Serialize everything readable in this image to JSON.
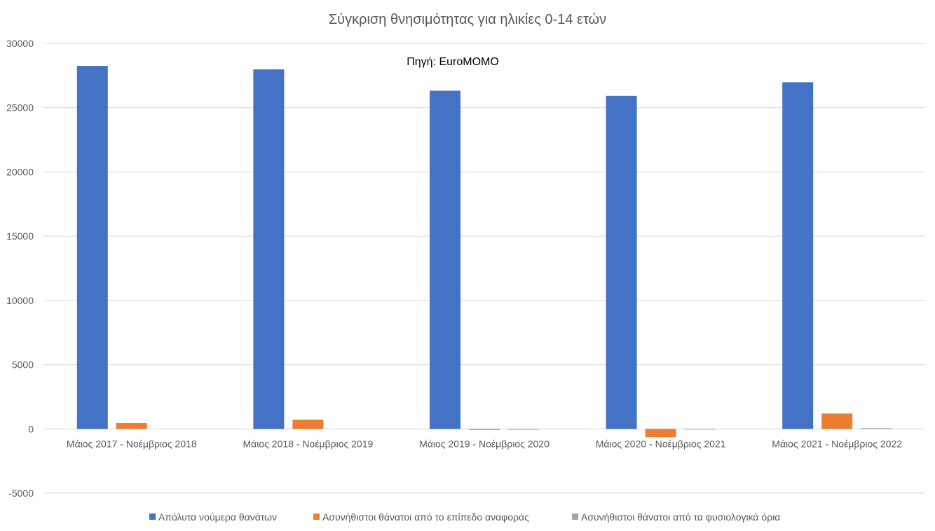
{
  "chart_data": {
    "type": "bar",
    "title": "Σύγκριση θνησιμότητας για ηλικίες 0-14 ετών",
    "annotation": "Πηγή: EuroMOMO",
    "categories": [
      "Μάιος 2017 - Νοέμβριος 2018",
      "Μάιος 2018 - Νοέμβριος 2019",
      "Μάιος 2019 - Νοέμβριος 2020",
      "Μάιος 2020 - Νοέμβριος 2021",
      "Μάιος 2021 - Νοέμβριος 2022"
    ],
    "series": [
      {
        "name": "Απόλυτα νούμερα θανάτων",
        "color": "#4472c4",
        "values": [
          28250,
          27980,
          26320,
          25920,
          26980
        ]
      },
      {
        "name": "Ασυνήθιστοι θάνατοι από το επίπεδο αναφοράς",
        "color": "#ed7d31",
        "values": [
          450,
          720,
          -80,
          -650,
          1200
        ]
      },
      {
        "name": "Ασυνήθιστοι θάνατοι από τα φυσιολογικά όρια",
        "color": "#a5a5a5",
        "values": [
          0,
          0,
          -60,
          -40,
          60
        ]
      }
    ],
    "ylim": [
      -5000,
      30000
    ],
    "yticks": [
      -5000,
      0,
      5000,
      10000,
      15000,
      20000,
      25000,
      30000
    ],
    "grid": true,
    "legend_position": "bottom"
  }
}
